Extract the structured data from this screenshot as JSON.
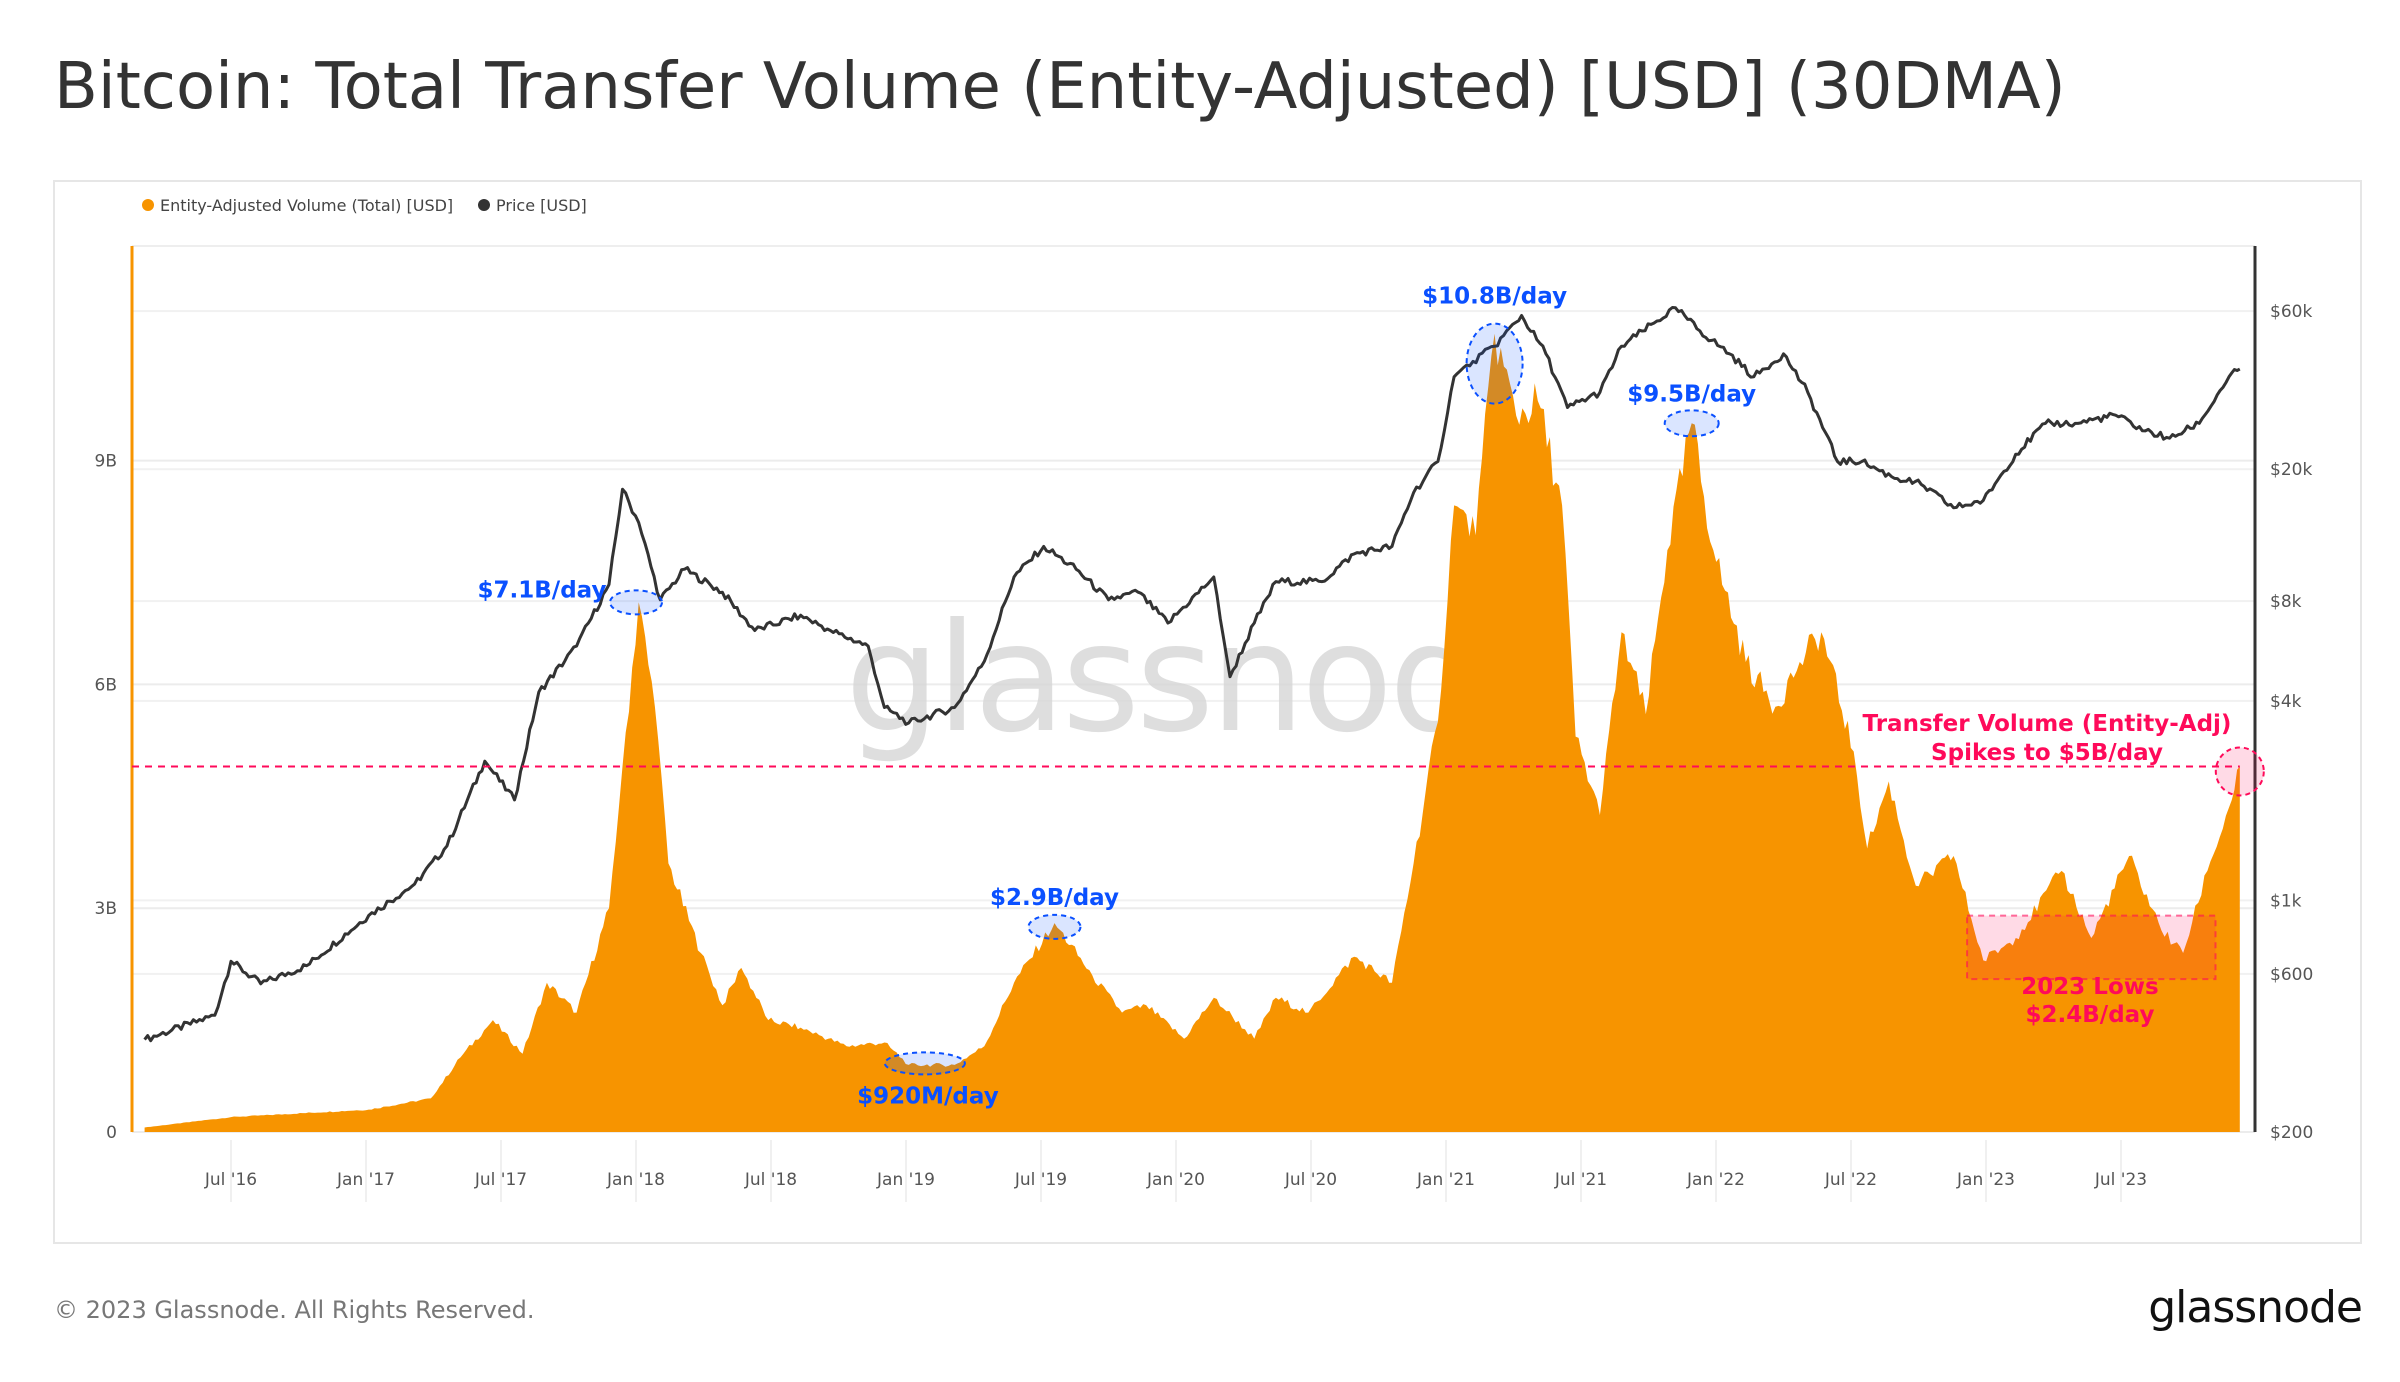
{
  "title": "Bitcoin: Total Transfer Volume (Entity-Adjusted) [USD] (30DMA)",
  "footer": {
    "copyright": "© 2023 Glassnode. All Rights Reserved.",
    "logo": "glassnode"
  },
  "watermark": "glassnode",
  "colors": {
    "volume": "#f79400",
    "price": "#333333",
    "annotation_blue": "#0a50ff",
    "annotation_red": "#ff0a5a"
  },
  "chart_data": {
    "type": "area",
    "title": "Bitcoin: Total Transfer Volume (Entity-Adjusted) [USD] (30DMA)",
    "legend": {
      "placement": "top-left",
      "entries": [
        "Entity-Adjusted Volume (Total) [USD]",
        "Price [USD]"
      ]
    },
    "x_ticks": [
      {
        "label": "Jul '16",
        "year": 2016.5
      },
      {
        "label": "Jan '17",
        "year": 2017.0
      },
      {
        "label": "Jul '17",
        "year": 2017.5
      },
      {
        "label": "Jan '18",
        "year": 2018.0
      },
      {
        "label": "Jul '18",
        "year": 2018.5
      },
      {
        "label": "Jan '19",
        "year": 2019.0
      },
      {
        "label": "Jul '19",
        "year": 2019.5
      },
      {
        "label": "Jan '20",
        "year": 2020.0
      },
      {
        "label": "Jul '20",
        "year": 2020.5
      },
      {
        "label": "Jan '21",
        "year": 2021.0
      },
      {
        "label": "Jul '21",
        "year": 2021.5
      },
      {
        "label": "Jan '22",
        "year": 2022.0
      },
      {
        "label": "Jul '22",
        "year": 2022.5
      },
      {
        "label": "Jan '23",
        "year": 2023.0
      },
      {
        "label": "Jul '23",
        "year": 2023.5
      }
    ],
    "y_left": {
      "scale": "linear",
      "unit": "USD billions",
      "range": [
        0,
        11.9
      ],
      "ticks": [
        {
          "label": "0",
          "value": 0
        },
        {
          "label": "3B",
          "value": 3
        },
        {
          "label": "6B",
          "value": 6
        },
        {
          "label": "9B",
          "value": 9
        }
      ]
    },
    "y_right": {
      "scale": "log",
      "unit": "USD",
      "range": [
        200,
        90000
      ],
      "ticks": [
        {
          "label": "$200",
          "value": 200
        },
        {
          "label": "$600",
          "value": 600
        },
        {
          "label": "$1k",
          "value": 1000
        },
        {
          "label": "$4k",
          "value": 4000
        },
        {
          "label": "$8k",
          "value": 8000
        },
        {
          "label": "$20k",
          "value": 20000
        },
        {
          "label": "$60k",
          "value": 60000
        }
      ]
    },
    "series": [
      {
        "name": "Entity-Adjusted Volume (Total) [USD]",
        "axis": "left",
        "type": "area",
        "color": "#f79400",
        "points": [
          [
            2016.18,
            0.06
          ],
          [
            2016.5,
            0.2
          ],
          [
            2017.01,
            0.3
          ],
          [
            2017.24,
            0.45
          ],
          [
            2017.35,
            1.0
          ],
          [
            2017.47,
            1.5
          ],
          [
            2017.58,
            1.05
          ],
          [
            2017.67,
            2.0
          ],
          [
            2017.78,
            1.6
          ],
          [
            2017.9,
            3.0
          ],
          [
            2017.95,
            4.9
          ],
          [
            2018.01,
            7.1
          ],
          [
            2018.07,
            5.7
          ],
          [
            2018.12,
            3.6
          ],
          [
            2018.24,
            2.4
          ],
          [
            2018.32,
            1.7
          ],
          [
            2018.39,
            2.2
          ],
          [
            2018.49,
            1.5
          ],
          [
            2018.61,
            1.4
          ],
          [
            2018.78,
            1.15
          ],
          [
            2018.92,
            1.2
          ],
          [
            2019.01,
            0.9
          ],
          [
            2019.18,
            0.9
          ],
          [
            2019.29,
            1.15
          ],
          [
            2019.4,
            2.0
          ],
          [
            2019.55,
            2.8
          ],
          [
            2019.69,
            2.1
          ],
          [
            2019.8,
            1.6
          ],
          [
            2019.89,
            1.7
          ],
          [
            2020.03,
            1.25
          ],
          [
            2020.14,
            1.8
          ],
          [
            2020.29,
            1.25
          ],
          [
            2020.37,
            1.8
          ],
          [
            2020.49,
            1.6
          ],
          [
            2020.66,
            2.35
          ],
          [
            2020.8,
            2.0
          ],
          [
            2020.88,
            3.6
          ],
          [
            2020.97,
            5.5
          ],
          [
            2021.03,
            8.4
          ],
          [
            2021.11,
            8.0
          ],
          [
            2021.18,
            10.7
          ],
          [
            2021.26,
            9.6
          ],
          [
            2021.34,
            9.8
          ],
          [
            2021.43,
            8.4
          ],
          [
            2021.48,
            5.3
          ],
          [
            2021.57,
            4.25
          ],
          [
            2021.65,
            6.7
          ],
          [
            2021.74,
            5.6
          ],
          [
            2021.82,
            7.8
          ],
          [
            2021.91,
            9.5
          ],
          [
            2021.99,
            7.8
          ],
          [
            2022.11,
            6.3
          ],
          [
            2022.22,
            5.7
          ],
          [
            2022.31,
            6.3
          ],
          [
            2022.39,
            6.7
          ],
          [
            2022.51,
            5.1
          ],
          [
            2022.56,
            3.8
          ],
          [
            2022.64,
            4.7
          ],
          [
            2022.74,
            3.3
          ],
          [
            2022.88,
            3.7
          ],
          [
            2022.99,
            2.3
          ],
          [
            2023.11,
            2.6
          ],
          [
            2023.28,
            3.5
          ],
          [
            2023.39,
            2.6
          ],
          [
            2023.53,
            3.7
          ],
          [
            2023.65,
            2.7
          ],
          [
            2023.73,
            2.4
          ],
          [
            2023.82,
            3.5
          ],
          [
            2023.9,
            4.35
          ],
          [
            2023.94,
            4.9
          ]
        ]
      },
      {
        "name": "Price [USD]",
        "axis": "right",
        "type": "line",
        "color": "#333333",
        "points": [
          [
            2016.18,
            380
          ],
          [
            2016.44,
            450
          ],
          [
            2016.5,
            655
          ],
          [
            2016.61,
            560
          ],
          [
            2016.78,
            635
          ],
          [
            2017.01,
            900
          ],
          [
            2017.18,
            1120
          ],
          [
            2017.3,
            1460
          ],
          [
            2017.44,
            2630
          ],
          [
            2017.55,
            2010
          ],
          [
            2017.64,
            4250
          ],
          [
            2017.78,
            5850
          ],
          [
            2017.9,
            8970
          ],
          [
            2017.95,
            17400
          ],
          [
            2018.01,
            13800
          ],
          [
            2018.09,
            8070
          ],
          [
            2018.18,
            9980
          ],
          [
            2018.32,
            8510
          ],
          [
            2018.44,
            6520
          ],
          [
            2018.61,
            7250
          ],
          [
            2018.72,
            6520
          ],
          [
            2018.86,
            5850
          ],
          [
            2018.92,
            3820
          ],
          [
            2019.01,
            3430
          ],
          [
            2019.18,
            3820
          ],
          [
            2019.29,
            5260
          ],
          [
            2019.4,
            9460
          ],
          [
            2019.51,
            11700
          ],
          [
            2019.63,
            9980
          ],
          [
            2019.75,
            8070
          ],
          [
            2019.86,
            8510
          ],
          [
            2019.97,
            6870
          ],
          [
            2020.14,
            9460
          ],
          [
            2020.2,
            4730
          ],
          [
            2020.29,
            6870
          ],
          [
            2020.37,
            9160
          ],
          [
            2020.54,
            9160
          ],
          [
            2020.66,
            11100
          ],
          [
            2020.8,
            11700
          ],
          [
            2020.88,
            17000
          ],
          [
            2020.97,
            21100
          ],
          [
            2021.03,
            38000
          ],
          [
            2021.1,
            42300
          ],
          [
            2021.18,
            47000
          ],
          [
            2021.28,
            58200
          ],
          [
            2021.37,
            44600
          ],
          [
            2021.45,
            30700
          ],
          [
            2021.57,
            34100
          ],
          [
            2021.65,
            47000
          ],
          [
            2021.77,
            55200
          ],
          [
            2021.85,
            61400
          ],
          [
            2021.94,
            52300
          ],
          [
            2022.05,
            44600
          ],
          [
            2022.14,
            38000
          ],
          [
            2022.25,
            44600
          ],
          [
            2022.34,
            34100
          ],
          [
            2022.45,
            21100
          ],
          [
            2022.54,
            21100
          ],
          [
            2022.65,
            19000
          ],
          [
            2022.76,
            18000
          ],
          [
            2022.88,
            15300
          ],
          [
            2022.99,
            16100
          ],
          [
            2023.11,
            22200
          ],
          [
            2023.22,
            27500
          ],
          [
            2023.33,
            27500
          ],
          [
            2023.48,
            29100
          ],
          [
            2023.59,
            26100
          ],
          [
            2023.68,
            24800
          ],
          [
            2023.79,
            27500
          ],
          [
            2023.9,
            38000
          ],
          [
            2023.94,
            40100
          ]
        ]
      }
    ],
    "reference_line": {
      "value": 4.9,
      "axis": "left",
      "style": "dashed",
      "color": "#ff0a5a"
    },
    "highlight_box": {
      "x_range": [
        2022.93,
        2023.85
      ],
      "y_range": [
        2.25,
        2.7
      ],
      "color": "#ff0a5a"
    },
    "annotations": [
      {
        "text": "$7.1B/day",
        "year": 2018.0,
        "value": 7.1,
        "color": "blue"
      },
      {
        "text": "$920M/day",
        "year": 2019.07,
        "value": 0.92,
        "color": "blue"
      },
      {
        "text": "$2.9B/day",
        "year": 2019.55,
        "value": 2.75,
        "color": "blue"
      },
      {
        "text": "$10.8B/day",
        "year": 2021.18,
        "value": 10.3,
        "color": "blue"
      },
      {
        "text": "$9.5B/day",
        "year": 2021.91,
        "value": 9.5,
        "color": "blue"
      },
      {
        "lines": [
          "Transfer Volume (Entity-Adj)",
          "Spikes to $5B/day"
        ],
        "year": 2023.94,
        "value": 4.9,
        "color": "red"
      },
      {
        "lines": [
          "2023 Lows",
          "$2.4B/day"
        ],
        "year": 2023.39,
        "value": 2.4,
        "color": "red"
      }
    ]
  }
}
